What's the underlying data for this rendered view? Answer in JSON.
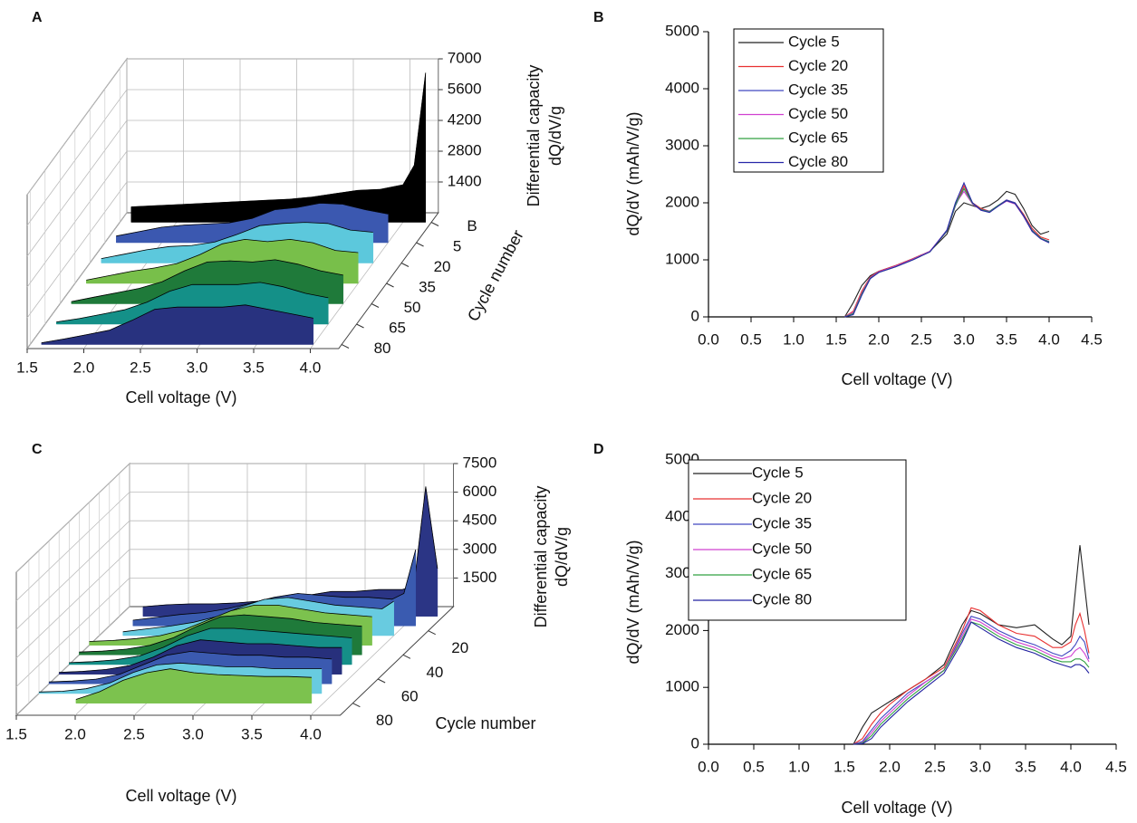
{
  "chart_data": [
    {
      "type": "waterfall",
      "label": "A",
      "xlabel": "Cell voltage (V)",
      "ylabel": [
        "Differential capacity",
        "dQ/dV/g"
      ],
      "depth_label": "Cycle number",
      "x": [
        1.6,
        1.8,
        2.0,
        2.2,
        2.4,
        2.6,
        2.8,
        3.0,
        3.2,
        3.4,
        3.6,
        3.8,
        4.0,
        4.1,
        4.2
      ],
      "xlim": [
        1.5,
        4.25
      ],
      "xticks": [
        1.5,
        {
          "value": 2,
          "label": "2.0"
        },
        2.5,
        {
          "value": 3,
          "label": "3.0"
        },
        3.5,
        {
          "value": 4,
          "label": "4.0"
        }
      ],
      "ylim": [
        0,
        7000
      ],
      "yticks": [
        1400,
        2800,
        4200,
        5600,
        7000
      ],
      "series": [
        {
          "name": "B",
          "color": "#000000",
          "values": [
            700,
            750,
            800,
            850,
            900,
            950,
            1000,
            1050,
            1150,
            1300,
            1450,
            1500,
            1700,
            2600,
            6800
          ]
        },
        {
          "name": "5",
          "color": "#3b58b0",
          "values": [
            300,
            500,
            700,
            800,
            850,
            900,
            1100,
            1500,
            1600,
            1800,
            1750,
            1500,
            1300,
            null,
            null
          ]
        },
        {
          "name": "20",
          "color": "#5cc8dc",
          "values": [
            200,
            400,
            600,
            750,
            800,
            950,
            1300,
            1700,
            1800,
            1850,
            1800,
            1500,
            1400,
            null,
            null
          ]
        },
        {
          "name": "35",
          "color": "#78bf4a",
          "values": [
            150,
            350,
            550,
            700,
            900,
            1300,
            1800,
            2000,
            1900,
            2000,
            1850,
            1500,
            1400,
            null,
            null
          ]
        },
        {
          "name": "50",
          "color": "#1f7a3a",
          "values": [
            100,
            300,
            500,
            700,
            1000,
            1500,
            1900,
            1950,
            1900,
            2000,
            1800,
            1500,
            1300,
            null,
            null
          ]
        },
        {
          "name": "65",
          "color": "#149088",
          "values": [
            100,
            250,
            450,
            650,
            1000,
            1500,
            1800,
            1800,
            1800,
            1900,
            1700,
            1400,
            1200,
            null,
            null
          ]
        },
        {
          "name": "80",
          "color": "#28327f",
          "values": [
            80,
            250,
            450,
            650,
            1100,
            1600,
            1700,
            1700,
            1700,
            1800,
            1600,
            1400,
            1200,
            null,
            null
          ]
        }
      ]
    },
    {
      "type": "line",
      "label": "B",
      "xlabel": "Cell voltage (V)",
      "ylabel": "dQ/dV (mAh/V/g)",
      "legend": "top-left",
      "x": [
        1.6,
        1.7,
        1.8,
        1.9,
        2.0,
        2.2,
        2.4,
        2.6,
        2.8,
        2.9,
        3.0,
        3.1,
        3.2,
        3.3,
        3.4,
        3.5,
        3.6,
        3.7,
        3.8,
        3.9,
        4.0
      ],
      "xlim": [
        0,
        4.5
      ],
      "xticks": [
        {
          "value": 0,
          "label": "0.0"
        },
        0.5,
        {
          "value": 1,
          "label": "1.0"
        },
        1.5,
        {
          "value": 2,
          "label": "2.0"
        },
        2.5,
        {
          "value": 3,
          "label": "3.0"
        },
        3.5,
        {
          "value": 4,
          "label": "4.0"
        },
        4.5
      ],
      "ylim": [
        0,
        5000
      ],
      "yticks": [
        0,
        1000,
        2000,
        3000,
        4000,
        5000
      ],
      "series": [
        {
          "name": "Cycle 5",
          "color": "#222222",
          "values": [
            0,
            250,
            550,
            720,
            800,
            900,
            1020,
            1150,
            1450,
            1850,
            2000,
            1950,
            1900,
            1950,
            2050,
            2200,
            2150,
            1900,
            1600,
            1450,
            1500
          ]
        },
        {
          "name": "Cycle 20",
          "color": "#e83030",
          "values": [
            0,
            100,
            450,
            700,
            800,
            900,
            1020,
            1150,
            1500,
            1950,
            2300,
            2000,
            1900,
            1850,
            1950,
            2050,
            2000,
            1800,
            1550,
            1400,
            1350
          ]
        },
        {
          "name": "Cycle 35",
          "color": "#4048c0",
          "values": [
            0,
            50,
            400,
            680,
            790,
            890,
            1010,
            1150,
            1500,
            1950,
            2250,
            2000,
            1880,
            1850,
            1950,
            2050,
            2000,
            1780,
            1520,
            1380,
            1320
          ]
        },
        {
          "name": "Cycle 50",
          "color": "#d040d0",
          "values": [
            0,
            80,
            420,
            690,
            790,
            890,
            1010,
            1150,
            1520,
            1980,
            2200,
            1980,
            1870,
            1840,
            1940,
            2030,
            1980,
            1760,
            1500,
            1370,
            1300
          ]
        },
        {
          "name": "Cycle 65",
          "color": "#30a040",
          "values": [
            0,
            60,
            400,
            680,
            780,
            880,
            1000,
            1140,
            1510,
            1970,
            2250,
            1990,
            1880,
            1840,
            1950,
            2040,
            1990,
            1770,
            1510,
            1380,
            1310
          ]
        },
        {
          "name": "Cycle 80",
          "color": "#2828a8",
          "values": [
            0,
            40,
            380,
            670,
            780,
            880,
            1000,
            1140,
            1520,
            2000,
            2350,
            2000,
            1870,
            1830,
            1940,
            2040,
            1990,
            1770,
            1500,
            1370,
            1300
          ]
        }
      ]
    },
    {
      "type": "waterfall",
      "label": "C",
      "xlabel": "Cell voltage (V)",
      "ylabel": [
        "Differential capacity",
        "dQ/dV/g"
      ],
      "depth_label": "Cycle number",
      "x": [
        1.5,
        1.7,
        1.9,
        2.1,
        2.3,
        2.5,
        2.7,
        2.9,
        3.1,
        3.3,
        3.5,
        3.7,
        3.9,
        4.0,
        4.1,
        4.2
      ],
      "xlim": [
        1.5,
        4.25
      ],
      "xticks": [
        1.5,
        {
          "value": 2,
          "label": "2.0"
        },
        2.5,
        {
          "value": 3,
          "label": "3.0"
        },
        3.5,
        {
          "value": 4,
          "label": "4.0"
        }
      ],
      "ylim": [
        0,
        7500
      ],
      "yticks": [
        1500,
        3000,
        4500,
        6000,
        7500
      ],
      "depth_lim": [
        0,
        90
      ],
      "depth_ticks": [
        20,
        40,
        60,
        80
      ],
      "series": [
        {
          "cycle": 8,
          "color": "#2b3585",
          "values": [
            null,
            500,
            600,
            650,
            650,
            700,
            800,
            900,
            1100,
            1300,
            1300,
            1400,
            1400,
            1600,
            6800,
            2500
          ]
        },
        {
          "cycle": 16,
          "color": "#3a5bb0",
          "values": [
            null,
            300,
            450,
            600,
            700,
            900,
            1200,
            1500,
            1700,
            1600,
            1500,
            1500,
            1400,
            1700,
            4000,
            null
          ]
        },
        {
          "cycle": 24,
          "color": "#68cbe0",
          "values": [
            null,
            200,
            350,
            500,
            700,
            1000,
            1500,
            1900,
            2000,
            1800,
            1600,
            1500,
            1400,
            1800,
            null,
            null
          ]
        },
        {
          "cycle": 32,
          "color": "#7cc24e",
          "values": [
            200,
            250,
            350,
            500,
            800,
            1300,
            1800,
            2100,
            2100,
            1900,
            1700,
            1600,
            1500,
            null,
            null,
            null
          ]
        },
        {
          "cycle": 40,
          "color": "#1f7a3a",
          "values": [
            150,
            200,
            300,
            500,
            900,
            1500,
            2000,
            2100,
            2000,
            1900,
            1700,
            1600,
            1500,
            null,
            null,
            null
          ]
        },
        {
          "cycle": 48,
          "color": "#158f88",
          "values": [
            100,
            150,
            250,
            450,
            900,
            1500,
            1900,
            1900,
            1800,
            1700,
            1600,
            1500,
            1400,
            null,
            null,
            null
          ]
        },
        {
          "cycle": 56,
          "color": "#27307c",
          "values": [
            100,
            150,
            250,
            450,
            900,
            1500,
            1800,
            1700,
            1600,
            1600,
            1500,
            1400,
            1400,
            null,
            null,
            null
          ]
        },
        {
          "cycle": 64,
          "color": "#3b5ab0",
          "values": [
            100,
            150,
            250,
            500,
            1000,
            1500,
            1700,
            1600,
            1500,
            1500,
            1400,
            1400,
            1300,
            null,
            null,
            null
          ]
        },
        {
          "cycle": 72,
          "color": "#68cbe0",
          "values": [
            80,
            120,
            250,
            550,
            1100,
            1500,
            1600,
            1500,
            1400,
            1400,
            1300,
            1300,
            1300,
            null,
            null,
            null
          ]
        },
        {
          "cycle": 80,
          "color": "#7cc24e",
          "values": [
            null,
            null,
            200,
            600,
            1200,
            1600,
            1800,
            1600,
            1500,
            1450,
            1400,
            1400,
            1350,
            null,
            null,
            null
          ]
        }
      ]
    },
    {
      "type": "line",
      "label": "D",
      "xlabel": "Cell voltage (V)",
      "ylabel": "dQ/dV (mAh/V/g)",
      "legend": "top-left",
      "x": [
        1.6,
        1.7,
        1.8,
        1.9,
        2.0,
        2.2,
        2.4,
        2.6,
        2.8,
        2.9,
        3.0,
        3.2,
        3.4,
        3.6,
        3.8,
        3.9,
        4.0,
        4.05,
        4.1,
        4.15,
        4.2
      ],
      "xlim": [
        0,
        4.5
      ],
      "xticks": [
        {
          "value": 0,
          "label": "0.0"
        },
        0.5,
        {
          "value": 1,
          "label": "1.0"
        },
        1.5,
        {
          "value": 2,
          "label": "2.0"
        },
        2.5,
        {
          "value": 3,
          "label": "3.0"
        },
        3.5,
        {
          "value": 4,
          "label": "4.0"
        },
        4.5
      ],
      "ylim": [
        0,
        5000
      ],
      "yticks": [
        0,
        1000,
        2000,
        3000,
        4000,
        5000
      ],
      "series": [
        {
          "name": "Cycle 5",
          "color": "#222222",
          "values": [
            0,
            300,
            550,
            650,
            750,
            950,
            1150,
            1400,
            2100,
            2350,
            2300,
            2100,
            2050,
            2100,
            1850,
            1750,
            1900,
            2700,
            3500,
            2800,
            2100
          ]
        },
        {
          "name": "Cycle 20",
          "color": "#e83030",
          "values": [
            0,
            100,
            350,
            550,
            700,
            950,
            1150,
            1350,
            2000,
            2400,
            2350,
            2100,
            1950,
            1900,
            1700,
            1700,
            1800,
            2100,
            2300,
            2000,
            1600
          ]
        },
        {
          "name": "Cycle 35",
          "color": "#4048c0",
          "values": [
            0,
            50,
            250,
            450,
            600,
            900,
            1100,
            1300,
            1950,
            2250,
            2200,
            2000,
            1850,
            1750,
            1600,
            1550,
            1650,
            1750,
            1900,
            1800,
            1500
          ]
        },
        {
          "name": "Cycle 50",
          "color": "#d040d0",
          "values": [
            0,
            30,
            200,
            400,
            550,
            850,
            1100,
            1300,
            1900,
            2200,
            2150,
            1950,
            1800,
            1700,
            1550,
            1500,
            1550,
            1650,
            1700,
            1600,
            1450
          ]
        },
        {
          "name": "Cycle 65",
          "color": "#30a040",
          "values": [
            0,
            20,
            150,
            350,
            500,
            800,
            1050,
            1300,
            1850,
            2150,
            2100,
            1900,
            1750,
            1650,
            1500,
            1450,
            1450,
            1500,
            1500,
            1450,
            1350
          ]
        },
        {
          "name": "Cycle 80",
          "color": "#2020a0",
          "values": [
            0,
            10,
            100,
            300,
            450,
            750,
            1000,
            1250,
            1800,
            2150,
            2050,
            1850,
            1700,
            1600,
            1450,
            1400,
            1350,
            1400,
            1400,
            1350,
            1250
          ]
        }
      ]
    }
  ]
}
